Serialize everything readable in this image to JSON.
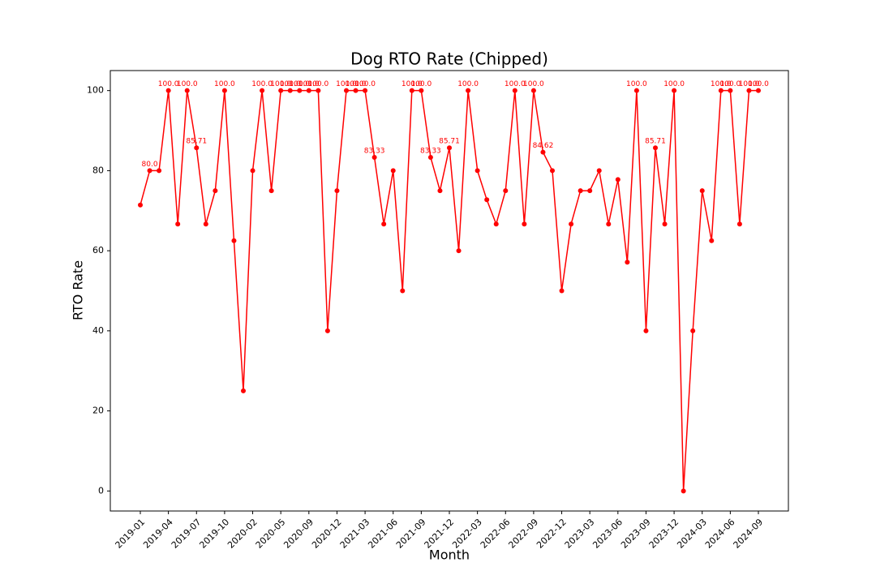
{
  "chart_data": {
    "type": "line",
    "title": "Dog RTO Rate (Chipped)",
    "x_label": "Month",
    "y_label": "RTO Rate",
    "categories": [
      "2019-01",
      null,
      null,
      "2019-04",
      null,
      null,
      "2019-07",
      null,
      null,
      "2019-10",
      null,
      null,
      "2020-02",
      null,
      null,
      "2020-05",
      null,
      null,
      "2020-09",
      null,
      null,
      "2020-12",
      null,
      null,
      "2021-03",
      null,
      null,
      "2021-06",
      null,
      null,
      "2021-09",
      null,
      null,
      "2021-12",
      null,
      null,
      "2022-03",
      null,
      null,
      "2022-06",
      null,
      null,
      "2022-09",
      null,
      null,
      "2022-12",
      null,
      null,
      "2023-03",
      null,
      null,
      "2023-06",
      null,
      null,
      "2023-09",
      null,
      null,
      "2023-12",
      null,
      null,
      "2024-03",
      null,
      null,
      "2024-06",
      null,
      null,
      "2024-09"
    ],
    "series": [
      {
        "name": "Chipped",
        "color": "#ff0000",
        "values": [
          71.43,
          80,
          80,
          100,
          66.67,
          100,
          85.71,
          66.67,
          75,
          100,
          62.5,
          25,
          80,
          100,
          75,
          100,
          100,
          100,
          100,
          100,
          40,
          75,
          100,
          100,
          100,
          83.33,
          66.67,
          80,
          50,
          100,
          100,
          83.33,
          75,
          85.71,
          60,
          100,
          80,
          72.73,
          66.67,
          75,
          100,
          66.67,
          100,
          84.62,
          80,
          50,
          66.67,
          75,
          75,
          80,
          66.67,
          77.78,
          57.14,
          100,
          40,
          85.71,
          66.67,
          100,
          0,
          40,
          75,
          62.5,
          100,
          100,
          66.67,
          100,
          100
        ],
        "value_labels": [
          null,
          "80.0",
          null,
          "100.0",
          null,
          "100.0",
          "85.71",
          null,
          null,
          "100.0",
          null,
          null,
          null,
          "100.0",
          null,
          "100.0",
          "100.0",
          "100.0",
          "100.0",
          "100.0",
          null,
          null,
          "100.0",
          "100.0",
          "100.0",
          "83.33",
          null,
          null,
          null,
          "100.0",
          "100.0",
          "83.33",
          null,
          "85.71",
          null,
          "100.0",
          null,
          null,
          null,
          null,
          "100.0",
          null,
          "100.0",
          "84.62",
          null,
          null,
          null,
          null,
          null,
          null,
          null,
          null,
          null,
          "100.0",
          null,
          "85.71",
          null,
          "100.0",
          null,
          null,
          null,
          null,
          "100.0",
          "100.0",
          null,
          "100.0",
          "100.0"
        ]
      }
    ],
    "ylim": [
      -5,
      105
    ],
    "yticks": [
      0,
      20,
      40,
      60,
      80,
      100
    ]
  }
}
